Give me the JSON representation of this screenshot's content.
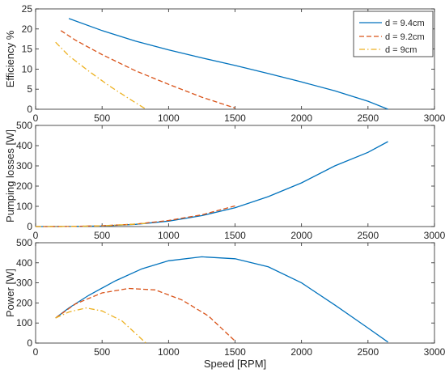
{
  "chart_data": [
    {
      "type": "line",
      "xlabel": "",
      "ylabel": "Efficiency %",
      "xlim": [
        0,
        3000
      ],
      "ylim": [
        0,
        25
      ],
      "xticks": [
        0,
        500,
        1000,
        1500,
        2000,
        2500,
        3000
      ],
      "yticks": [
        0,
        5,
        10,
        15,
        20,
        25
      ],
      "grid": false,
      "legend": "top-right",
      "series": [
        {
          "name": "d = 9.4cm",
          "color": "#0072BD",
          "style": "solid",
          "x": [
            250,
            500,
            750,
            1000,
            1250,
            1500,
            1750,
            2000,
            2250,
            2500,
            2650
          ],
          "y": [
            22.6,
            19.6,
            17.0,
            14.8,
            12.8,
            10.9,
            8.9,
            6.8,
            4.6,
            2.0,
            0.0
          ]
        },
        {
          "name": "d = 9.2cm",
          "color": "#D95319",
          "style": "dashed",
          "x": [
            190,
            300,
            500,
            750,
            1000,
            1250,
            1500
          ],
          "y": [
            19.6,
            17.2,
            13.6,
            9.6,
            6.2,
            3.0,
            0.3
          ]
        },
        {
          "name": "d = 9cm",
          "color": "#EDB120",
          "style": "dashdot",
          "x": [
            150,
            250,
            400,
            550,
            700,
            830
          ],
          "y": [
            16.7,
            13.3,
            9.5,
            5.9,
            2.7,
            0.0
          ]
        }
      ]
    },
    {
      "type": "line",
      "xlabel": "",
      "ylabel": "Pumping losses [W]",
      "xlim": [
        0,
        3000
      ],
      "ylim": [
        0,
        500
      ],
      "xticks": [
        0,
        500,
        1000,
        1500,
        2000,
        2500,
        3000
      ],
      "yticks": [
        0,
        100,
        200,
        300,
        400,
        500
      ],
      "grid": false,
      "series": [
        {
          "name": "d = 9.4cm",
          "color": "#0072BD",
          "style": "solid",
          "x": [
            0,
            250,
            500,
            750,
            1000,
            1250,
            1500,
            1750,
            2000,
            2250,
            2500,
            2650
          ],
          "y": [
            0,
            0.4,
            3,
            11,
            27,
            54,
            93,
            148,
            216,
            300,
            367,
            420
          ]
        },
        {
          "name": "d = 9.2cm",
          "color": "#D95319",
          "style": "dashed",
          "x": [
            0,
            250,
            500,
            750,
            1000,
            1250,
            1500
          ],
          "y": [
            0,
            0.5,
            4,
            12,
            30,
            58,
            102
          ]
        },
        {
          "name": "d = 9cm",
          "color": "#EDB120",
          "style": "dashdot",
          "x": [
            0,
            250,
            500,
            700,
            830
          ],
          "y": [
            0,
            0.5,
            3.5,
            10,
            16
          ]
        }
      ]
    },
    {
      "type": "line",
      "xlabel": "Speed [RPM]",
      "ylabel": "Power [W]",
      "xlim": [
        0,
        3000
      ],
      "ylim": [
        0,
        500
      ],
      "xticks": [
        0,
        500,
        1000,
        1500,
        2000,
        2500,
        3000
      ],
      "yticks": [
        0,
        100,
        200,
        300,
        400,
        500
      ],
      "grid": false,
      "series": [
        {
          "name": "d = 9.4cm",
          "color": "#0072BD",
          "style": "solid",
          "x": [
            150,
            250,
            400,
            600,
            800,
            1000,
            1250,
            1500,
            1750,
            2000,
            2250,
            2500,
            2650
          ],
          "y": [
            125,
            175,
            238,
            310,
            370,
            410,
            430,
            420,
            380,
            300,
            190,
            75,
            5
          ]
        },
        {
          "name": "d = 9.2cm",
          "color": "#D95319",
          "style": "dashed",
          "x": [
            150,
            300,
            500,
            700,
            900,
            1100,
            1300,
            1500
          ],
          "y": [
            125,
            195,
            250,
            272,
            265,
            215,
            135,
            10
          ]
        },
        {
          "name": "d = 9cm",
          "color": "#EDB120",
          "style": "dashdot",
          "x": [
            150,
            250,
            380,
            500,
            650,
            830
          ],
          "y": [
            125,
            155,
            175,
            160,
            110,
            0
          ]
        }
      ]
    }
  ]
}
